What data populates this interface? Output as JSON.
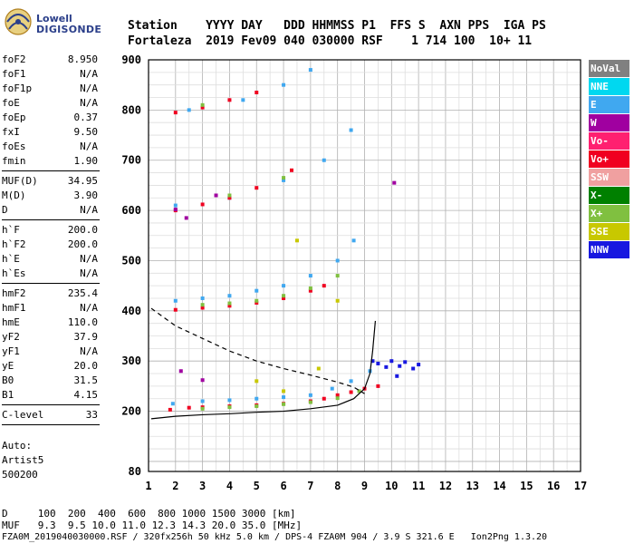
{
  "logo": {
    "line1": "Lowell",
    "line2": "DIGISONDE"
  },
  "header": {
    "line1": "Station    YYYY DAY   DDD HHMMSS P1  FFS S  AXN PPS  IGA PS",
    "line2": "Fortaleza  2019 Fev09 040 030000 RSF    1 714 100  10+ 11"
  },
  "params": {
    "group1": [
      {
        "k": "foF2",
        "v": "8.950"
      },
      {
        "k": "foF1",
        "v": "N/A"
      },
      {
        "k": "foF1p",
        "v": "N/A"
      },
      {
        "k": "foE",
        "v": "N/A"
      },
      {
        "k": "foEp",
        "v": "0.37"
      },
      {
        "k": "fxI",
        "v": "9.50"
      },
      {
        "k": "foEs",
        "v": "N/A"
      },
      {
        "k": "fmin",
        "v": "1.90"
      }
    ],
    "group2": [
      {
        "k": "MUF(D)",
        "v": "34.95"
      },
      {
        "k": "M(D)",
        "v": "3.90"
      },
      {
        "k": "D",
        "v": "N/A"
      }
    ],
    "group3": [
      {
        "k": "h`F",
        "v": "200.0"
      },
      {
        "k": "h`F2",
        "v": "200.0"
      },
      {
        "k": "h`E",
        "v": "N/A"
      },
      {
        "k": "h`Es",
        "v": "N/A"
      }
    ],
    "group4": [
      {
        "k": "hmF2",
        "v": "235.4"
      },
      {
        "k": "hmF1",
        "v": "N/A"
      },
      {
        "k": "hmE",
        "v": "110.0"
      },
      {
        "k": "yF2",
        "v": "37.9"
      },
      {
        "k": "yF1",
        "v": "N/A"
      },
      {
        "k": "yE",
        "v": "20.0"
      },
      {
        "k": "B0",
        "v": "31.5"
      },
      {
        "k": "B1",
        "v": "4.15"
      }
    ],
    "group5": [
      {
        "k": "C-level",
        "v": "33"
      }
    ]
  },
  "auto": {
    "line1": "Auto:",
    "line2": "Artist5",
    "line3": "500200"
  },
  "legend": [
    {
      "label": "NoVal",
      "color": "#808080",
      "text": "#ffffff"
    },
    {
      "label": "NNE",
      "color": "#00d8f0",
      "text": "#ffffff"
    },
    {
      "label": "E",
      "color": "#40a8f0",
      "text": "#ffffff"
    },
    {
      "label": "W",
      "color": "#a000a0",
      "text": "#ffffff"
    },
    {
      "label": "Vo-",
      "color": "#ff2070",
      "text": "#ffffff"
    },
    {
      "label": "Vo+",
      "color": "#f00020",
      "text": "#ffffff"
    },
    {
      "label": "SSW",
      "color": "#f0a0a0",
      "text": "#ffffff"
    },
    {
      "label": "X-",
      "color": "#008000",
      "text": "#ffffff"
    },
    {
      "label": "X+",
      "color": "#80c040",
      "text": "#ffffff"
    },
    {
      "label": "SSE",
      "color": "#c8c800",
      "text": "#ffffff"
    },
    {
      "label": "NNW",
      "color": "#1818e0",
      "text": "#ffffff"
    }
  ],
  "chart_data": {
    "type": "scatter",
    "xlim": [
      1,
      17
    ],
    "ylim": [
      80,
      900
    ],
    "x_ticks": [
      "1",
      "2",
      "3",
      "4",
      "5",
      "6",
      "7",
      "8",
      "9",
      "10",
      "11",
      "12",
      "13",
      "14",
      "15",
      "16",
      "17"
    ],
    "y_ticks": [
      {
        "v": 200,
        "label": "200"
      },
      {
        "v": 300,
        "label": "300"
      },
      {
        "v": 400,
        "label": "400"
      },
      {
        "v": 500,
        "label": "500"
      },
      {
        "v": 600,
        "label": "600"
      },
      {
        "v": 700,
        "label": "700"
      },
      {
        "v": 800,
        "label": "800"
      },
      {
        "v": 900,
        "label": "900"
      },
      {
        "v": 80,
        "label": "80"
      }
    ],
    "grid": true,
    "series": [
      {
        "name": "NNE",
        "color": "#40a8f0",
        "points": [
          [
            1.9,
            215
          ],
          [
            3,
            220
          ],
          [
            4,
            222
          ],
          [
            5,
            225
          ],
          [
            6,
            228
          ],
          [
            7,
            232
          ],
          [
            7.8,
            245
          ],
          [
            8.5,
            260
          ],
          [
            9.2,
            280
          ],
          [
            2,
            420
          ],
          [
            3,
            425
          ],
          [
            4,
            430
          ],
          [
            5,
            440
          ],
          [
            6,
            450
          ],
          [
            7,
            470
          ],
          [
            8,
            500
          ],
          [
            8.6,
            540
          ],
          [
            2,
            610
          ],
          [
            4,
            625
          ],
          [
            6,
            660
          ],
          [
            7.5,
            700
          ],
          [
            8.5,
            760
          ],
          [
            2.5,
            800
          ],
          [
            4.5,
            820
          ],
          [
            6,
            850
          ],
          [
            7,
            880
          ]
        ]
      },
      {
        "name": "Vo+",
        "color": "#f00020",
        "points": [
          [
            1.8,
            203
          ],
          [
            2.5,
            207
          ],
          [
            3,
            208
          ],
          [
            4,
            210
          ],
          [
            5,
            212
          ],
          [
            6,
            215
          ],
          [
            7,
            220
          ],
          [
            7.5,
            225
          ],
          [
            8,
            232
          ],
          [
            8.5,
            238
          ],
          [
            9,
            245
          ],
          [
            9.5,
            250
          ],
          [
            2,
            402
          ],
          [
            3,
            406
          ],
          [
            4,
            410
          ],
          [
            5,
            416
          ],
          [
            6,
            425
          ],
          [
            7,
            440
          ],
          [
            7.5,
            450
          ],
          [
            2,
            600
          ],
          [
            3,
            612
          ],
          [
            4,
            625
          ],
          [
            5,
            645
          ],
          [
            6.3,
            680
          ],
          [
            2,
            795
          ],
          [
            3,
            805
          ],
          [
            4,
            820
          ],
          [
            5,
            835
          ]
        ]
      },
      {
        "name": "X+",
        "color": "#80c040",
        "points": [
          [
            3,
            205
          ],
          [
            4,
            208
          ],
          [
            5,
            210
          ],
          [
            6,
            214
          ],
          [
            7,
            218
          ],
          [
            8,
            226
          ],
          [
            8.8,
            240
          ],
          [
            3,
            412
          ],
          [
            4,
            415
          ],
          [
            5,
            420
          ],
          [
            6,
            430
          ],
          [
            7,
            445
          ],
          [
            8,
            470
          ],
          [
            4,
            630
          ],
          [
            6,
            665
          ],
          [
            3,
            810
          ]
        ]
      },
      {
        "name": "NNW",
        "color": "#1818e0",
        "points": [
          [
            9.5,
            295
          ],
          [
            9.8,
            288
          ],
          [
            10,
            300
          ],
          [
            10.3,
            290
          ],
          [
            10.5,
            298
          ],
          [
            10.8,
            285
          ],
          [
            11,
            293
          ],
          [
            9.3,
            300
          ],
          [
            10.2,
            270
          ]
        ]
      },
      {
        "name": "W",
        "color": "#a000a0",
        "points": [
          [
            2.4,
            585
          ],
          [
            3.5,
            630
          ],
          [
            2.2,
            280
          ],
          [
            3,
            262
          ],
          [
            10.1,
            655
          ],
          [
            2,
            602
          ]
        ]
      },
      {
        "name": "SSE",
        "color": "#c8c800",
        "points": [
          [
            5,
            260
          ],
          [
            7.3,
            285
          ],
          [
            6,
            240
          ],
          [
            8,
            420
          ],
          [
            6.5,
            540
          ]
        ]
      }
    ],
    "profile_dashed": [
      [
        1.1,
        405
      ],
      [
        2,
        370
      ],
      [
        3,
        345
      ],
      [
        4,
        320
      ],
      [
        5,
        300
      ],
      [
        6,
        285
      ],
      [
        7,
        272
      ],
      [
        8,
        258
      ],
      [
        8.6,
        248
      ],
      [
        9,
        235
      ]
    ],
    "profile_solid": [
      [
        1.1,
        185
      ],
      [
        2,
        190
      ],
      [
        3,
        193
      ],
      [
        4,
        195
      ],
      [
        5,
        198
      ],
      [
        6,
        200
      ],
      [
        7,
        205
      ],
      [
        8,
        212
      ],
      [
        8.6,
        225
      ],
      [
        9,
        245
      ],
      [
        9.2,
        275
      ],
      [
        9.3,
        320
      ],
      [
        9.4,
        380
      ]
    ],
    "trace_pairs": [
      [
        1,
        100,
        9.3
      ],
      [
        2,
        200,
        9.5
      ],
      [
        3,
        400,
        10.0
      ],
      [
        4,
        600,
        11.0
      ],
      [
        5,
        800,
        12.3
      ],
      [
        6,
        1000,
        14.3
      ],
      [
        7,
        1500,
        20.0
      ],
      [
        8,
        3000,
        35.0
      ]
    ]
  },
  "bottom": {
    "line1": "D     100  200  400  600  800 1000 1500 3000 [km]",
    "line2": "MUF   9.3  9.5 10.0 11.0 12.3 14.3 20.0 35.0 [MHz]"
  },
  "footer": "FZA0M_2019040030000.RSF / 320fx256h 50 kHz 5.0 km / DPS-4 FZA0M 904 / 3.9 S 321.6 E   Ion2Png 1.3.20"
}
